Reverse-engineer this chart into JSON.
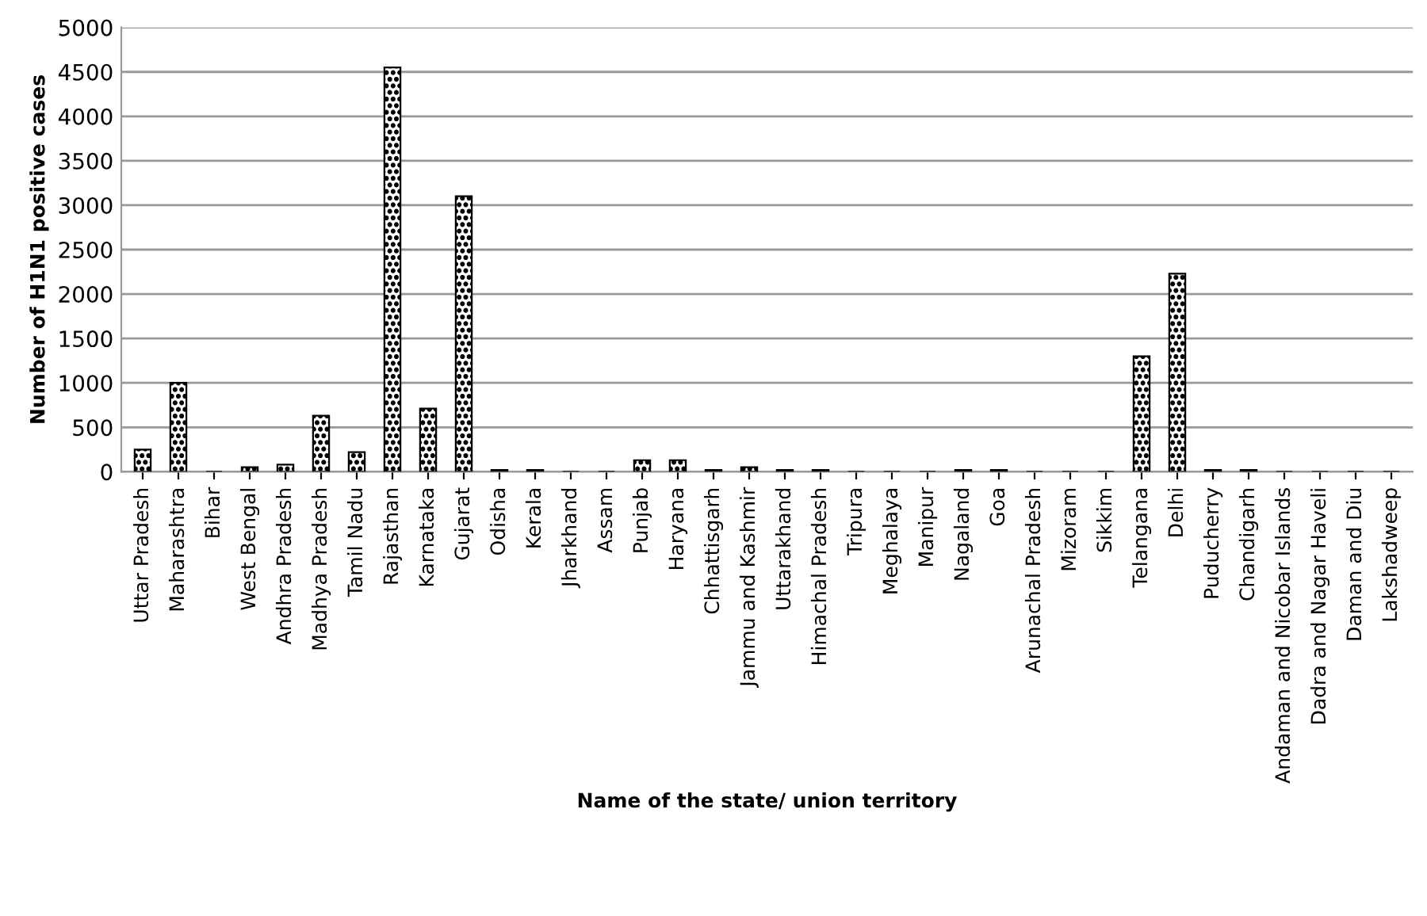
{
  "chart_data": {
    "type": "bar",
    "xlabel": "Name of the state/ union territory",
    "ylabel": "Number of H1N1 positive cases",
    "categories": [
      "Uttar Pradesh",
      "Maharashtra",
      "Bihar",
      "West Bengal",
      "Andhra Pradesh",
      "Madhya Pradesh",
      "Tamil Nadu",
      "Rajasthan",
      "Karnataka",
      "Gujarat",
      "Odisha",
      "Kerala",
      "Jharkhand",
      "Assam",
      "Punjab",
      "Haryana",
      "Chhattisgarh",
      "Jammu and Kashmir",
      "Uttarakhand",
      "Himachal Pradesh",
      "Tripura",
      "Meghalaya",
      "Manipur",
      "Nagaland",
      "Goa",
      "Arunachal Pradesh",
      "Mizoram",
      "Sikkim",
      "Telangana",
      "Delhi",
      "Puducherry",
      "Chandigarh",
      "Andaman and Nicobar Islands",
      "Dadra and Nagar Haveli",
      "Daman and Diu",
      "Lakshadweep"
    ],
    "values": [
      250,
      1000,
      0,
      50,
      80,
      630,
      220,
      4550,
      710,
      3100,
      20,
      20,
      0,
      0,
      130,
      130,
      20,
      50,
      20,
      20,
      0,
      0,
      0,
      20,
      20,
      0,
      0,
      0,
      1300,
      2230,
      20,
      20,
      0,
      0,
      0,
      0
    ],
    "color": "#000000",
    "ylim": [
      0,
      5000
    ],
    "yticks": [
      0,
      500,
      1000,
      1500,
      2000,
      2500,
      3000,
      3500,
      4000,
      4500,
      5000
    ],
    "grid": "y",
    "legend": false
  }
}
